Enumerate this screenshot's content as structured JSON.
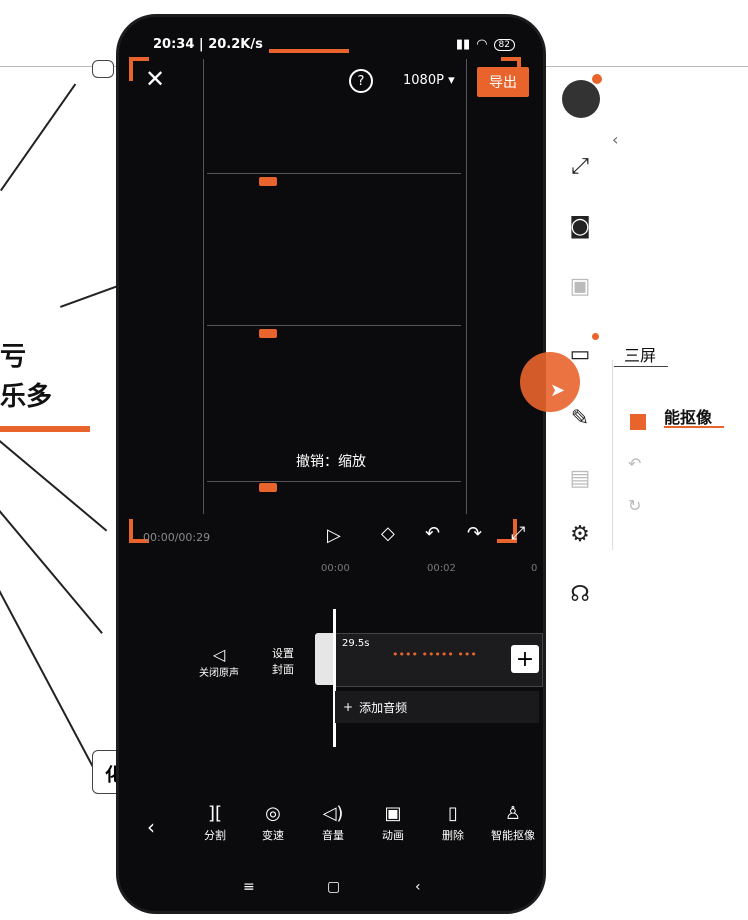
{
  "background": {
    "fragment_1": "亏",
    "fragment_2": "乐多",
    "fragment_3": "化"
  },
  "status_bar": {
    "time": "20:34",
    "speed": "20.2K/s",
    "battery": "82"
  },
  "editor": {
    "export_label": "导出",
    "resolution": "1080P",
    "help_icon": "question-icon",
    "toast": "撤销：缩放",
    "timecode": "00:00/00:29",
    "ruler": [
      "00:00",
      "00:02",
      "0"
    ],
    "mute_label": "关闭原声",
    "cover_label_1": "设置",
    "cover_label_2": "封面",
    "clip_duration": "29.5s",
    "add_audio": "添加音频",
    "toolbar": [
      "分割",
      "变速",
      "音量",
      "动画",
      "删除",
      "智能抠像"
    ]
  },
  "right_panel": {
    "label_1": "三屏",
    "label_2": "能抠像"
  },
  "colors": {
    "accent": "#e8642c",
    "phone_bg": "#0b0b0d"
  }
}
